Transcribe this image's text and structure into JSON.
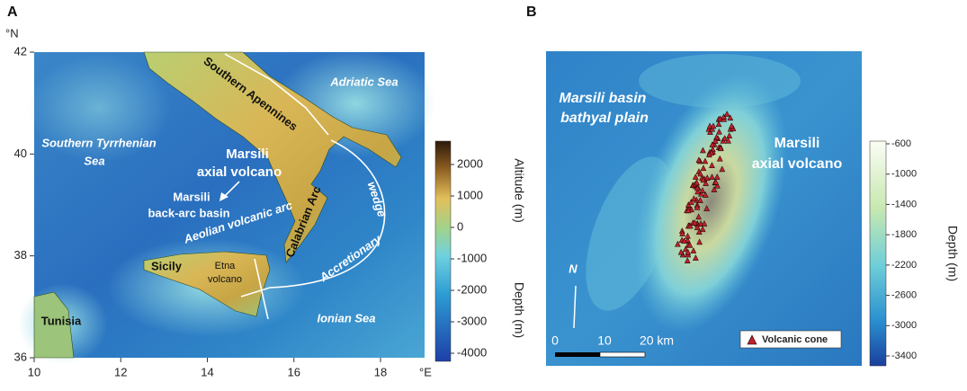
{
  "panel_a": {
    "letter": "A",
    "lat_unit": "°N",
    "lon_unit": "°E",
    "lat_ticks": [
      36,
      38,
      40,
      42
    ],
    "lon_ticks": [
      10,
      12,
      14,
      16,
      18
    ],
    "labels": {
      "southern_apennines": "Southern Apennines",
      "adriatic_sea": "Adriatic Sea",
      "tyrrhenian_1": "Southern Tyrrhenian",
      "tyrrhenian_2": "Sea",
      "marsili_1": "Marsili",
      "marsili_2": "axial volcano",
      "basin_1": "Marsili",
      "basin_2": "back-arc basin",
      "aeolian": "Aeolian volcanic arc",
      "calabrian": "Calabrian Arc",
      "wedge_1": "Accretionary",
      "wedge_2": "wedge",
      "sicily": "Sicily",
      "etna_1": "Etna",
      "etna_2": "volcano",
      "tunisia": "Tunisia",
      "ionian_sea": "Ionian Sea"
    },
    "colorbar": {
      "ticks": [
        2000,
        1000,
        0,
        -1000,
        -2000,
        -3000,
        -4000
      ],
      "label_top": "Altitude (m)",
      "label_bottom": "Depth (m)"
    }
  },
  "panel_b": {
    "letter": "B",
    "labels": {
      "plain_1": "Marsili basin",
      "plain_2": "bathyal plain",
      "volcano_1": "Marsili",
      "volcano_2": "axial volcano",
      "north": "N"
    },
    "scale": {
      "start": "0",
      "mid": "10",
      "end": "20 km"
    },
    "legend": "Volcanic cone",
    "colorbar": {
      "ticks": [
        -600,
        -1000,
        -1400,
        -1800,
        -2200,
        -2600,
        -3000,
        -3400
      ],
      "label": "Depth (m)"
    }
  }
}
